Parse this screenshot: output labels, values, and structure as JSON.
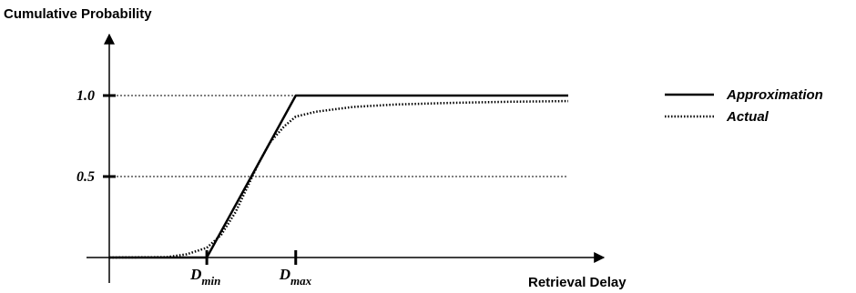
{
  "chart_data": {
    "type": "line",
    "ylabel": "Cumulative Probability",
    "xlabel": "Retrieval Delay",
    "y_ticks": [
      {
        "value": 1.0,
        "label": "1.0"
      },
      {
        "value": 0.5,
        "label": "0.5"
      }
    ],
    "x_marks": [
      {
        "key": "dmin",
        "main": "D",
        "sub": "min"
      },
      {
        "key": "dmax",
        "main": "D",
        "sub": "max"
      }
    ],
    "ylim": [
      0,
      1.3
    ],
    "grid": "dotted reference lines at 0.5 and 1.0",
    "legend_position": "top-right",
    "series": [
      {
        "name": "Approximation",
        "style": "solid",
        "color": "#000000",
        "points": [
          [
            0,
            0
          ],
          [
            0.34,
            0
          ],
          [
            0.65,
            1.0
          ],
          [
            1.6,
            1.0
          ]
        ]
      },
      {
        "name": "Actual",
        "style": "dotted",
        "color": "#000000",
        "points": [
          [
            0,
            0
          ],
          [
            0.2,
            0.002
          ],
          [
            0.27,
            0.02
          ],
          [
            0.34,
            0.06
          ],
          [
            0.39,
            0.14
          ],
          [
            0.44,
            0.28
          ],
          [
            0.48,
            0.43
          ],
          [
            0.52,
            0.58
          ],
          [
            0.56,
            0.71
          ],
          [
            0.61,
            0.81
          ],
          [
            0.65,
            0.87
          ],
          [
            0.72,
            0.9
          ],
          [
            0.85,
            0.93
          ],
          [
            1.0,
            0.945
          ],
          [
            1.2,
            0.955
          ],
          [
            1.4,
            0.962
          ],
          [
            1.6,
            0.966
          ]
        ]
      }
    ]
  }
}
